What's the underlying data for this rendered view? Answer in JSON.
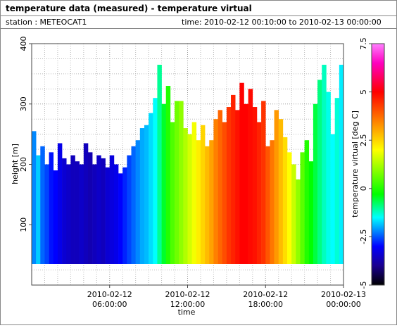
{
  "chart_data": {
    "type": "heatmap",
    "title": "temperature data (measured) - temperature virtual",
    "station_label": "station : METEOCAT1",
    "time_label": "time: 2010-02-12 00:10:00 to 2010-02-13 00:00:00",
    "x_label": "time",
    "y_label": "height [m]",
    "colorbar_label": "temperature virtual [deg C]",
    "x": [
      "2010-02-12 00:10:00",
      "2010-02-12 00:30:00",
      "2010-02-12 00:50:00",
      "2010-02-12 01:10:00",
      "2010-02-12 01:30:00",
      "2010-02-12 01:50:00",
      "2010-02-12 02:10:00",
      "2010-02-12 02:30:00",
      "2010-02-12 02:50:00",
      "2010-02-12 03:10:00",
      "2010-02-12 03:30:00",
      "2010-02-12 03:50:00",
      "2010-02-12 04:10:00",
      "2010-02-12 04:30:00",
      "2010-02-12 04:50:00",
      "2010-02-12 05:10:00",
      "2010-02-12 05:30:00",
      "2010-02-12 05:50:00",
      "2010-02-12 06:10:00",
      "2010-02-12 06:30:00",
      "2010-02-12 06:50:00",
      "2010-02-12 07:10:00",
      "2010-02-12 07:30:00",
      "2010-02-12 07:50:00",
      "2010-02-12 08:10:00",
      "2010-02-12 08:30:00",
      "2010-02-12 08:50:00",
      "2010-02-12 09:10:00",
      "2010-02-12 09:30:00",
      "2010-02-12 09:50:00",
      "2010-02-12 10:10:00",
      "2010-02-12 10:30:00",
      "2010-02-12 10:50:00",
      "2010-02-12 11:10:00",
      "2010-02-12 11:30:00",
      "2010-02-12 11:50:00",
      "2010-02-12 12:10:00",
      "2010-02-12 12:30:00",
      "2010-02-12 12:50:00",
      "2010-02-12 13:10:00",
      "2010-02-12 13:30:00",
      "2010-02-12 13:50:00",
      "2010-02-12 14:10:00",
      "2010-02-12 14:30:00",
      "2010-02-12 14:50:00",
      "2010-02-12 15:10:00",
      "2010-02-12 15:30:00",
      "2010-02-12 15:50:00",
      "2010-02-12 16:10:00",
      "2010-02-12 16:30:00",
      "2010-02-12 16:50:00",
      "2010-02-12 17:10:00",
      "2010-02-12 17:30:00",
      "2010-02-12 17:50:00",
      "2010-02-12 18:10:00",
      "2010-02-12 18:30:00",
      "2010-02-12 18:50:00",
      "2010-02-12 19:10:00",
      "2010-02-12 19:30:00",
      "2010-02-12 19:50:00",
      "2010-02-12 20:10:00",
      "2010-02-12 20:30:00",
      "2010-02-12 20:50:00",
      "2010-02-12 21:10:00",
      "2010-02-12 21:30:00",
      "2010-02-12 21:50:00",
      "2010-02-12 22:10:00",
      "2010-02-12 22:30:00",
      "2010-02-12 22:50:00",
      "2010-02-12 23:10:00",
      "2010-02-12 23:30:00",
      "2010-02-12 23:50:00"
    ],
    "base_height": 35,
    "heights": [
      255,
      215,
      230,
      200,
      220,
      190,
      235,
      210,
      200,
      215,
      205,
      200,
      235,
      220,
      200,
      215,
      210,
      195,
      215,
      200,
      185,
      195,
      215,
      230,
      240,
      260,
      265,
      285,
      310,
      365,
      300,
      330,
      270,
      305,
      305,
      260,
      250,
      270,
      240,
      265,
      230,
      240,
      275,
      290,
      270,
      295,
      315,
      290,
      335,
      300,
      325,
      295,
      270,
      305,
      230,
      240,
      290,
      275,
      245,
      220,
      200,
      175,
      220,
      240,
      205,
      300,
      340,
      365,
      320,
      250,
      310,
      365
    ],
    "temperatures": [
      -2.2,
      -1.8,
      -2.4,
      -2.6,
      -2.9,
      -3.0,
      -3.2,
      -3.4,
      -3.5,
      -3.6,
      -3.6,
      -3.5,
      -3.6,
      -3.7,
      -3.6,
      -3.5,
      -3.6,
      -3.4,
      -3.3,
      -3.2,
      -3.0,
      -2.8,
      -2.6,
      -2.4,
      -2.2,
      -2.0,
      -1.9,
      -1.7,
      -1.5,
      -1.0,
      -0.5,
      0.0,
      0.4,
      0.7,
      1.0,
      1.3,
      1.6,
      1.9,
      2.2,
      2.5,
      2.8,
      3.1,
      3.5,
      3.8,
      4.1,
      4.4,
      4.6,
      4.8,
      5.0,
      5.0,
      4.9,
      4.8,
      4.6,
      4.4,
      4.0,
      3.6,
      3.2,
      2.8,
      2.4,
      2.0,
      1.5,
      1.0,
      0.5,
      0.0,
      -0.3,
      -0.6,
      -0.9,
      -1.2,
      -1.4,
      -1.5,
      -1.3,
      -1.6
    ],
    "xlim": [
      "2010-02-12 00:00:00",
      "2010-02-13 00:00:00"
    ],
    "xticks": [
      {
        "value": "2010-02-12 06:00:00",
        "date": "2010-02-12",
        "time": "06:00:00"
      },
      {
        "value": "2010-02-12 12:00:00",
        "date": "2010-02-12",
        "time": "12:00:00"
      },
      {
        "value": "2010-02-12 18:00:00",
        "date": "2010-02-12",
        "time": "18:00:00"
      },
      {
        "value": "2010-02-13 00:00:00",
        "date": "2010-02-13",
        "time": "00:00:00"
      }
    ],
    "ylim": [
      0,
      400
    ],
    "yticks": [
      100,
      200,
      300,
      400
    ],
    "clim": [
      -5,
      7.5
    ],
    "cticks": [
      -5,
      -2.5,
      0,
      2.5,
      5,
      7.5
    ],
    "colormap": [
      [
        -5,
        "#000000"
      ],
      [
        -4,
        "#1a0090"
      ],
      [
        -3,
        "#0000ff"
      ],
      [
        -1.5,
        "#00ffff"
      ],
      [
        -0.3,
        "#00ff00"
      ],
      [
        2,
        "#ffff00"
      ],
      [
        3.5,
        "#ff8000"
      ],
      [
        5,
        "#ff0000"
      ],
      [
        6.5,
        "#ff00c0"
      ],
      [
        7.5,
        "#ff80ff"
      ]
    ],
    "grid": true
  }
}
